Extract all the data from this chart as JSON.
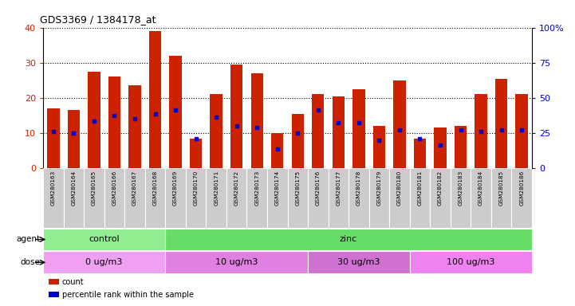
{
  "title": "GDS3369 / 1384178_at",
  "samples": [
    "GSM280163",
    "GSM280164",
    "GSM280165",
    "GSM280166",
    "GSM280167",
    "GSM280168",
    "GSM280169",
    "GSM280170",
    "GSM280171",
    "GSM280172",
    "GSM280173",
    "GSM280174",
    "GSM280175",
    "GSM280176",
    "GSM280177",
    "GSM280178",
    "GSM280179",
    "GSM280180",
    "GSM280181",
    "GSM280182",
    "GSM280183",
    "GSM280184",
    "GSM280185",
    "GSM280186"
  ],
  "counts": [
    17.0,
    16.5,
    27.5,
    26.0,
    23.5,
    39.0,
    32.0,
    8.5,
    21.0,
    29.5,
    27.0,
    10.0,
    15.5,
    21.0,
    20.5,
    22.5,
    12.0,
    25.0,
    8.5,
    11.5,
    12.0,
    21.0,
    25.5,
    21.0
  ],
  "percentile_pos": [
    10.5,
    10.0,
    13.5,
    15.0,
    14.0,
    15.5,
    16.5,
    8.5,
    14.5,
    12.0,
    11.5,
    5.5,
    10.0,
    16.5,
    13.0,
    13.0,
    8.0,
    11.0,
    8.5,
    6.5,
    11.0,
    10.5,
    11.0,
    11.0
  ],
  "bar_color": "#cc2200",
  "dot_color": "#0000cc",
  "ylim_left": [
    0,
    40
  ],
  "ylim_right": [
    0,
    100
  ],
  "yticks_left": [
    0,
    10,
    20,
    30,
    40
  ],
  "yticks_right": [
    0,
    25,
    50,
    75,
    100
  ],
  "yticklabels_right": [
    "0",
    "25",
    "50",
    "75",
    "100%"
  ],
  "agent_regions": [
    {
      "label": "control",
      "start": 0,
      "end": 5,
      "color": "#90ee90"
    },
    {
      "label": "zinc",
      "start": 6,
      "end": 23,
      "color": "#66dd66"
    }
  ],
  "dose_regions": [
    {
      "label": "0 ug/m3",
      "start": 0,
      "end": 5,
      "color": "#f0a0f0"
    },
    {
      "label": "10 ug/m3",
      "start": 6,
      "end": 12,
      "color": "#e080e0"
    },
    {
      "label": "30 ug/m3",
      "start": 13,
      "end": 17,
      "color": "#d070d0"
    },
    {
      "label": "100 ug/m3",
      "start": 18,
      "end": 23,
      "color": "#ee82ee"
    }
  ],
  "ticklabel_bg": "#cccccc",
  "left_color": "#cc2200",
  "right_color": "#0000cc",
  "bar_width": 0.6,
  "legend_count_color": "#cc2200",
  "legend_pct_color": "#0000cc"
}
